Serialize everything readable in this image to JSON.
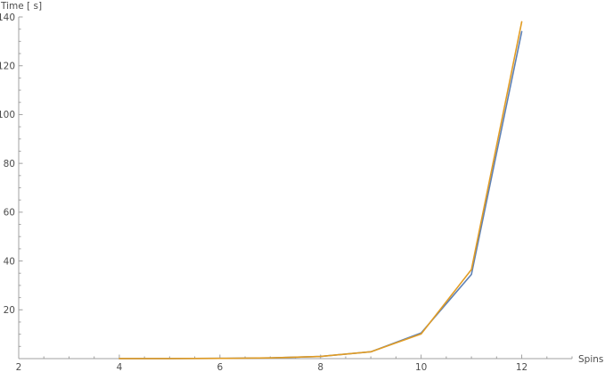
{
  "chart_data": {
    "type": "line",
    "title": "",
    "xlabel": "Spins",
    "ylabel": "Time [ s]",
    "xlim": [
      2,
      13
    ],
    "ylim": [
      0,
      140
    ],
    "x_ticks_major": [
      2,
      4,
      6,
      8,
      10,
      12
    ],
    "x_ticks_minor": [
      2.5,
      3,
      3.5,
      4.5,
      5,
      5.5,
      6.5,
      7,
      7.5,
      8.5,
      9,
      9.5,
      10.5,
      11,
      11.5,
      12.5,
      13
    ],
    "y_ticks_major": [
      20,
      40,
      60,
      80,
      100,
      120,
      140
    ],
    "y_ticks_minor": [
      5,
      10,
      15,
      25,
      30,
      35,
      45,
      50,
      55,
      65,
      70,
      75,
      85,
      90,
      95,
      105,
      110,
      115,
      125,
      130,
      135
    ],
    "grid": false,
    "legend": "none",
    "series": [
      {
        "color": "#5e81b5",
        "x": [
          4,
          5,
          6,
          7,
          8,
          9,
          10,
          11,
          12
        ],
        "y": [
          0.01,
          0.03,
          0.1,
          0.3,
          0.9,
          2.8,
          10.5,
          34.5,
          134
        ]
      },
      {
        "color": "#e19c24",
        "x": [
          4,
          5,
          6,
          7,
          8,
          9,
          10,
          11,
          12
        ],
        "y": [
          0.01,
          0.03,
          0.1,
          0.3,
          0.9,
          2.8,
          10.1,
          36.5,
          138
        ]
      }
    ]
  }
}
